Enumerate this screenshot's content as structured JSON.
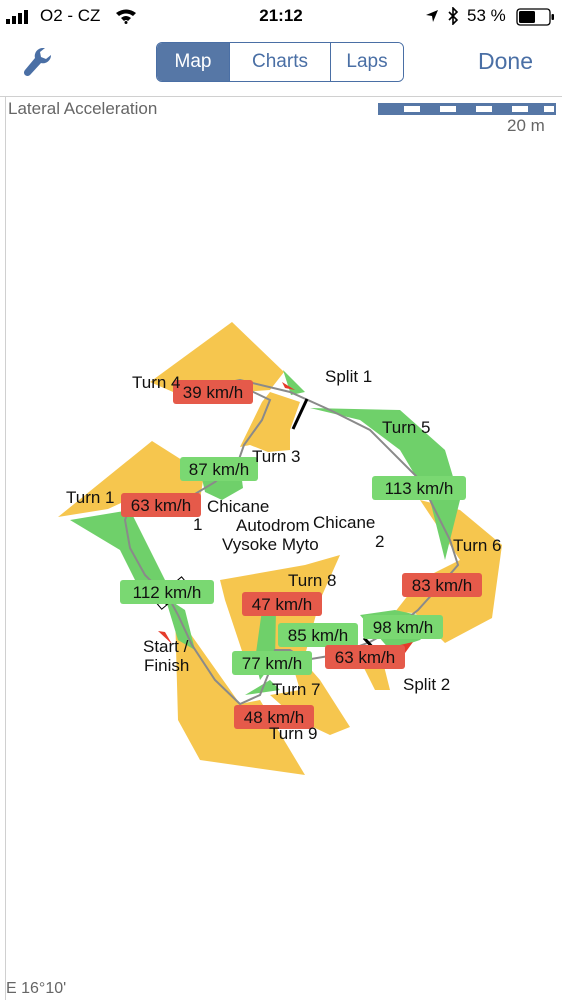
{
  "status_bar": {
    "carrier": "O2 - CZ",
    "time": "21:12",
    "battery": "53 %"
  },
  "nav": {
    "tabs": [
      "Map",
      "Charts",
      "Laps"
    ],
    "active_tab": "Map",
    "done_label": "Done",
    "settings_icon": "wrench-icon"
  },
  "map": {
    "title": "Lateral Acceleration",
    "scale_label": "20 m",
    "longitude_label": "E 16°10'",
    "track_name_line1": "Autodrom",
    "track_name_line2": "Vysoke Myto",
    "turns": {
      "turn1": "Turn 1",
      "turn3": "Turn 3",
      "turn4": "Turn 4",
      "turn5": "Turn 5",
      "turn6": "Turn 6",
      "turn7": "Turn 7",
      "turn8": "Turn 8",
      "turn9": "Turn 9"
    },
    "chicane1_line1": "Chicane",
    "chicane1_line2": "1",
    "chicane2_line1": "Chicane",
    "chicane2_line2": "2",
    "split1": "Split 1",
    "split2": "Split 2",
    "start_line1": "Start /",
    "start_line2": "Finish",
    "speeds": {
      "s_turn4": "39 km/h",
      "s_turn3": "87 km/h",
      "s_turn1": "63 km/h",
      "s_turn5": "113 km/h",
      "s_turn6": "83 km/h",
      "s_start": "112 km/h",
      "s_turn8": "47 km/h",
      "s_85": "85 km/h",
      "s_98": "98 km/h",
      "s_63b": "63 km/h",
      "s_77": "77 km/h",
      "s_48": "48 km/h"
    },
    "colors": {
      "accel_high": "#f6c64e",
      "accel_mid": "#6fd06a",
      "speed_min_bg": "#e55a4a",
      "speed_max_bg": "#7ad872",
      "track_line": "#8a8a8a",
      "accent": "#4a6fa5"
    }
  }
}
